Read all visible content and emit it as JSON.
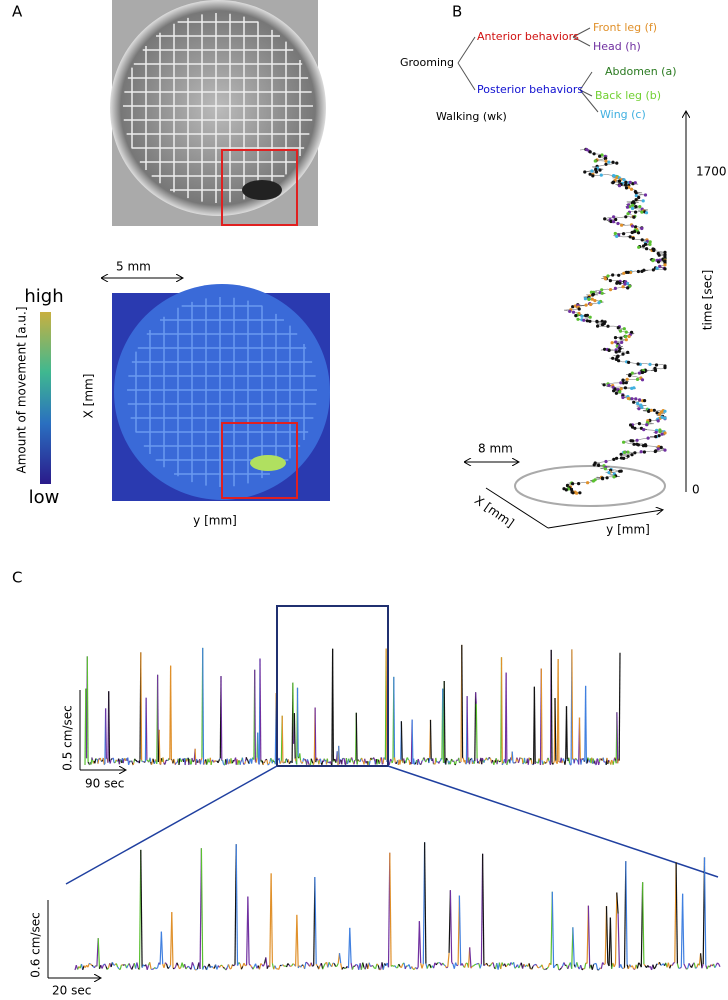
{
  "panel_a": {
    "label": "A",
    "scale": "5 mm",
    "colorbar_high": "high",
    "colorbar_low": "low",
    "colorbar_title": "Amount of movement [a.u.]",
    "x_axis": "X [mm]",
    "y_axis": "y [mm]"
  },
  "panel_b": {
    "label": "B",
    "root": "Grooming",
    "anterior": "Anterior behaviors",
    "posterior": "Posterior behaviors",
    "front_leg": "Front leg (f)",
    "head": "Head (h)",
    "abdomen": "Abdomen (a)",
    "back_leg": "Back leg (b)",
    "wing": "Wing (c)",
    "walking": "Walking (wk)",
    "time_max": "1700",
    "time_label": "time [sec]",
    "time_min": "0",
    "scale": "8 mm",
    "x_axis": "X [mm]",
    "y_axis": "y [mm]"
  },
  "panel_c": {
    "label": "C",
    "top_y_scale": "0.5 cm/sec",
    "top_x_scale": "90 sec",
    "bottom_y_scale": "0.6 cm/sec",
    "bottom_x_scale": "20 sec"
  }
}
